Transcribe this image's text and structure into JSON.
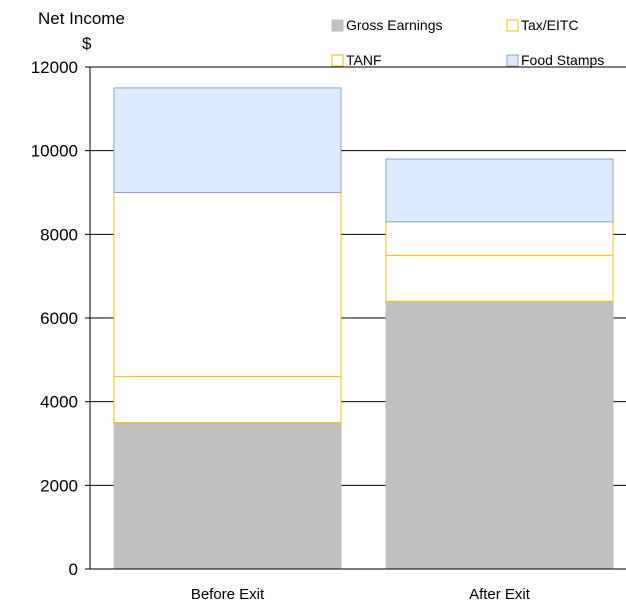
{
  "chart_data": {
    "type": "bar",
    "stacked": true,
    "categories": [
      "Before Exit",
      "After Exit"
    ],
    "series": [
      {
        "name": "Gross Earnings",
        "values": [
          3500,
          6400
        ],
        "fill": "#c0c0c0",
        "stroke": "#c0c0c0"
      },
      {
        "name": "Tax/EITC",
        "values": [
          1100,
          1100
        ],
        "fill": "#ffffff",
        "stroke": "#f2c200"
      },
      {
        "name": "TANF",
        "values": [
          4400,
          800
        ],
        "fill": "#ffffff",
        "stroke": "#f2c200"
      },
      {
        "name": "Food Stamps",
        "values": [
          2500,
          1500
        ],
        "fill": "#ddeaff",
        "stroke": "#8aa4c8"
      }
    ],
    "title": "",
    "ylabel": "Net Income",
    "yunit": "$",
    "ylim": [
      0,
      12000
    ],
    "yticks": [
      "0",
      "2000",
      "4000",
      "6000",
      "8000",
      "10000",
      "12000"
    ],
    "grid": true,
    "legend": {
      "position": "top-right",
      "items": [
        "Gross Earnings",
        "Tax/EITC",
        "TANF",
        "Food Stamps"
      ]
    },
    "colors": {
      "axis": "#000000",
      "grid": "#000000"
    }
  }
}
